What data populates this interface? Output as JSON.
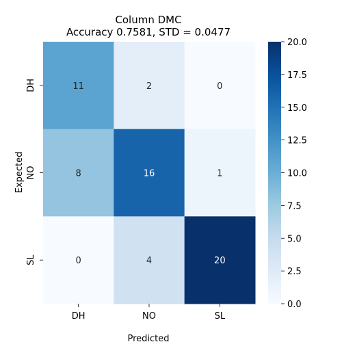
{
  "chart_data": {
    "type": "heatmap",
    "title": "Column DMC",
    "subtitle": "Accuracy 0.7581, STD = 0.0477",
    "xlabel": "Predicted",
    "ylabel": "Expected",
    "x_categories": [
      "DH",
      "NO",
      "SL"
    ],
    "y_categories": [
      "DH",
      "NO",
      "SL"
    ],
    "matrix": [
      [
        11,
        2,
        0
      ],
      [
        8,
        16,
        1
      ],
      [
        0,
        4,
        20
      ]
    ],
    "colormap": "Blues",
    "vmin": 0,
    "vmax": 20,
    "colorbar_ticks": [
      "0.0",
      "2.5",
      "5.0",
      "7.5",
      "10.0",
      "12.5",
      "15.0",
      "17.5",
      "20.0"
    ]
  }
}
